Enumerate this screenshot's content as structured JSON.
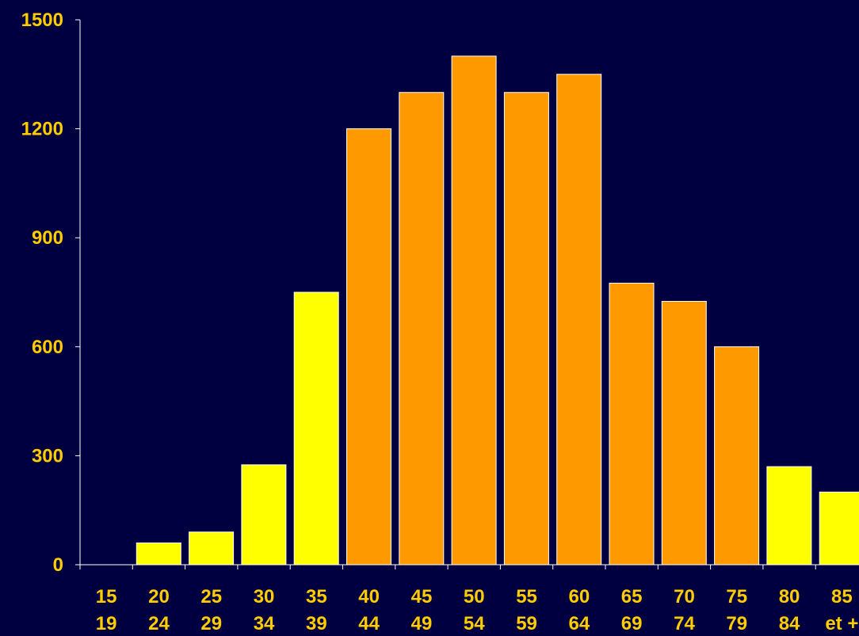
{
  "colors": {
    "background": "#000040",
    "axis": "#FFFFFF",
    "tick_label": "#FFCC00",
    "bar_yellow": "#FFFF00",
    "bar_orange": "#FF9900",
    "bar_border": "#FFFFFF"
  },
  "chart_data": {
    "type": "bar",
    "title": "",
    "xlabel": "",
    "ylabel": "",
    "ylim": [
      0,
      1500
    ],
    "yticks": [
      0,
      300,
      600,
      900,
      1200,
      1500
    ],
    "grid": false,
    "legend": "none",
    "categories": [
      [
        "15",
        "19"
      ],
      [
        "20",
        "24"
      ],
      [
        "25",
        "29"
      ],
      [
        "30",
        "34"
      ],
      [
        "35",
        "39"
      ],
      [
        "40",
        "44"
      ],
      [
        "45",
        "49"
      ],
      [
        "50",
        "54"
      ],
      [
        "55",
        "59"
      ],
      [
        "60",
        "64"
      ],
      [
        "65",
        "69"
      ],
      [
        "70",
        "74"
      ],
      [
        "75",
        "79"
      ],
      [
        "80",
        "84"
      ],
      [
        "85",
        "et +"
      ]
    ],
    "values": [
      0,
      60,
      90,
      275,
      750,
      1200,
      1300,
      1400,
      1300,
      1350,
      775,
      725,
      600,
      270,
      200
    ],
    "bar_colors": [
      "yellow",
      "yellow",
      "yellow",
      "yellow",
      "yellow",
      "orange",
      "orange",
      "orange",
      "orange",
      "orange",
      "orange",
      "orange",
      "orange",
      "yellow",
      "yellow"
    ]
  }
}
